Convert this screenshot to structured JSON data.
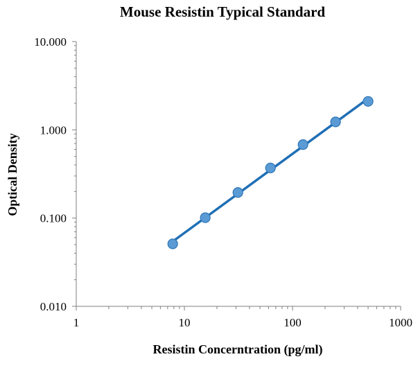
{
  "chart_data": {
    "type": "scatter",
    "title": "Mouse Resistin Typical Standard",
    "xlabel": "Resistin Concerntration (pg/ml)",
    "ylabel": "Optical Density",
    "x_scale": "log",
    "y_scale": "log",
    "xlim": [
      1,
      1000
    ],
    "ylim": [
      0.01,
      10
    ],
    "x_ticks": [
      1,
      10,
      100,
      1000
    ],
    "x_tick_labels": [
      "1",
      "10",
      "100",
      "1000"
    ],
    "y_ticks": [
      0.01,
      0.1,
      1,
      10
    ],
    "y_tick_labels": [
      "0.010",
      "0.100",
      "1.000",
      "10.000"
    ],
    "grid": false,
    "legend": "none",
    "series": [
      {
        "x": [
          7.8,
          15.6,
          31.25,
          62.5,
          125,
          250,
          500
        ],
        "y": [
          0.051,
          0.101,
          0.195,
          0.37,
          0.68,
          1.23,
          2.1
        ],
        "marker_color": "#5b9bd5",
        "marker_edge_color": "#2e75b6",
        "line_color": "#1f6fb5",
        "trendline": "power"
      }
    ]
  }
}
